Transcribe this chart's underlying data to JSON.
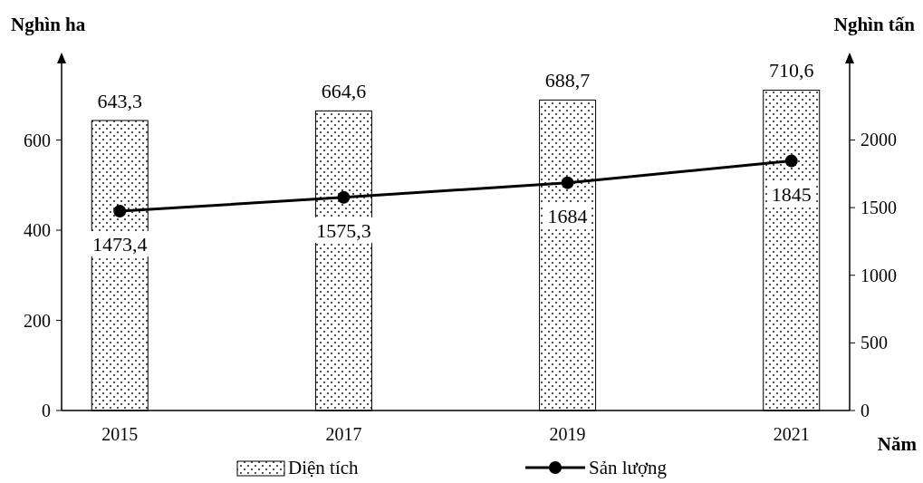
{
  "chart_data": {
    "type": "bar",
    "categories": [
      "2015",
      "2017",
      "2019",
      "2021"
    ],
    "xlabel": "Năm",
    "ylabel": "Nghìn ha",
    "y2label": "Nghìn tấn",
    "ylim": [
      0,
      790
    ],
    "yticks": [
      0,
      200,
      400,
      600
    ],
    "y2lim": [
      0,
      2633
    ],
    "y2ticks": [
      0,
      500,
      1000,
      1500,
      2000
    ],
    "legend": "bottom",
    "marker": "circle",
    "series": [
      {
        "name": "Diện tích",
        "color": "#000000",
        "values": [
          643.3,
          664.6,
          688.7,
          710.6
        ],
        "value_labels": [
          "643,3",
          "664,6",
          "688,7",
          "710,6"
        ]
      },
      {
        "name": "Sản lượng",
        "type": "line",
        "axis": "y2",
        "color": "#000000",
        "values": [
          1473.4,
          1575.3,
          1684,
          1845
        ],
        "value_labels": [
          "1473,4",
          "1575,3",
          "1684",
          "1845"
        ]
      }
    ]
  }
}
